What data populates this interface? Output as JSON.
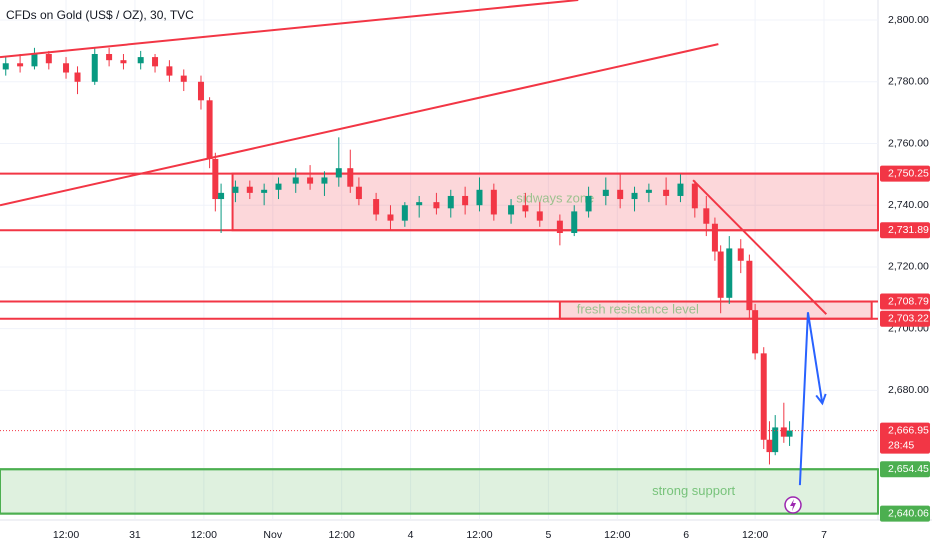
{
  "chart_data": {
    "type": "candlestick",
    "title": "CFDs on Gold (US$ / OZ), 30, TVC",
    "up_color": "#089981",
    "down_color": "#f23645",
    "x": [
      1.5,
      4,
      6.5,
      9,
      12,
      14,
      17,
      19.5,
      22,
      25,
      27.5,
      30,
      32.5,
      35.5,
      37,
      38,
      39,
      41.5,
      44,
      46.5,
      49,
      52,
      54.5,
      57,
      59.5,
      61.5,
      63,
      66,
      68.5,
      71,
      73.5,
      76.5,
      79,
      81.5,
      84,
      86.5,
      89.5,
      92,
      94.5,
      98,
      100.5,
      103,
      106,
      108.5,
      111,
      113.5,
      116.5,
      119,
      121.5,
      123.5,
      125,
      126,
      127.5,
      129.5,
      131,
      132,
      133.5,
      134.5,
      135.5,
      137,
      138
    ],
    "open": [
      2784,
      2786,
      2785,
      2789,
      2786,
      2783,
      2780,
      2789,
      2787,
      2786,
      2788,
      2785,
      2782,
      2780,
      2774,
      2755,
      2742,
      2744,
      2746,
      2744,
      2745,
      2747,
      2749,
      2747,
      2749,
      2752,
      2746,
      2742,
      2737,
      2735,
      2740,
      2741,
      2739,
      2743,
      2740,
      2745,
      2737,
      2740,
      2738,
      2735,
      2731,
      2738,
      2743,
      2745,
      2742,
      2744,
      2745,
      2743,
      2747,
      2739,
      2734,
      2725,
      2710,
      2726,
      2722,
      2706,
      2692,
      2664,
      2660,
      2668,
      2665
    ],
    "high": [
      2788,
      2789,
      2791,
      2790,
      2788,
      2785,
      2791,
      2791,
      2789,
      2790,
      2789,
      2787,
      2784,
      2782,
      2775,
      2757,
      2747,
      2748,
      2748,
      2747,
      2749,
      2752,
      2753,
      2751,
      2762,
      2758,
      2749,
      2744,
      2740,
      2741,
      2743,
      2744,
      2745,
      2746,
      2749,
      2747,
      2742,
      2744,
      2741,
      2737,
      2740,
      2746,
      2749,
      2750,
      2746,
      2747,
      2749,
      2750,
      2748,
      2743,
      2736,
      2727,
      2730,
      2729,
      2724,
      2708,
      2694,
      2670,
      2672,
      2676,
      2670
    ],
    "low": [
      2782,
      2783,
      2784,
      2784,
      2781,
      2776,
      2779,
      2785,
      2784,
      2784,
      2783,
      2780,
      2777,
      2771,
      2752,
      2738,
      2731,
      2741,
      2742,
      2740,
      2742,
      2744,
      2745,
      2743,
      2746,
      2744,
      2740,
      2735,
      2732,
      2733,
      2736,
      2737,
      2736,
      2737,
      2738,
      2735,
      2734,
      2736,
      2733,
      2727,
      2730,
      2736,
      2740,
      2739,
      2738,
      2741,
      2740,
      2741,
      2736,
      2730,
      2722,
      2705,
      2708,
      2718,
      2703,
      2690,
      2661,
      2656,
      2659,
      2663,
      2662
    ],
    "close": [
      2786,
      2785,
      2789,
      2786,
      2783,
      2780,
      2789,
      2787,
      2786,
      2788,
      2785,
      2782,
      2780,
      2774,
      2755,
      2742,
      2744,
      2746,
      2744,
      2745,
      2747,
      2749,
      2747,
      2749,
      2752,
      2746,
      2742,
      2737,
      2735,
      2740,
      2741,
      2739,
      2743,
      2740,
      2745,
      2737,
      2740,
      2738,
      2735,
      2731,
      2738,
      2743,
      2745,
      2742,
      2744,
      2745,
      2743,
      2747,
      2739,
      2734,
      2725,
      2710,
      2726,
      2722,
      2706,
      2692,
      2664,
      2660,
      2668,
      2665,
      2667
    ],
    "xlim": [
      0.5,
      153.4
    ],
    "ylim": [
      2638,
      2806.5
    ],
    "xticks": [
      {
        "value": 12,
        "label": "12:00"
      },
      {
        "value": 24,
        "label": "31"
      },
      {
        "value": 36,
        "label": "12:00"
      },
      {
        "value": 48,
        "label": "Nov"
      },
      {
        "value": 60,
        "label": "12:00"
      },
      {
        "value": 72,
        "label": "4"
      },
      {
        "value": 84,
        "label": "12:00"
      },
      {
        "value": 96,
        "label": "5"
      },
      {
        "value": 108,
        "label": "12:00"
      },
      {
        "value": 120,
        "label": "6"
      },
      {
        "value": 132,
        "label": "12:00"
      },
      {
        "value": 144,
        "label": "7"
      }
    ],
    "yticks": [
      {
        "value": 2800,
        "label": "2,800.00"
      },
      {
        "value": 2780,
        "label": "2,780.00"
      },
      {
        "value": 2760,
        "label": "2,760.00"
      },
      {
        "value": 2740,
        "label": "2,740.00"
      },
      {
        "value": 2720,
        "label": "2,720.00"
      },
      {
        "value": 2700,
        "label": "2,700.00"
      },
      {
        "value": 2680,
        "label": "2,680.00"
      }
    ],
    "zones": [
      {
        "name": "sidways zone",
        "top": 2750.25,
        "bottom": 2731.89,
        "x_from": 41,
        "x_to": 153.4,
        "fill": "rgba(242,54,69,0.2)",
        "edge": "#f23645",
        "text_color": "rgba(76,175,80,0.55)"
      },
      {
        "name": "fresh resistance level",
        "top": 2708.79,
        "bottom": 2703.22,
        "x_from": 98,
        "x_to": 152.3,
        "fill": "rgba(242,54,69,0.2)",
        "edge": "#f23645",
        "text_color": "rgba(76,175,80,0.55)"
      },
      {
        "name": "strong support",
        "top": 2654.45,
        "bottom": 2640.06,
        "x_from": 0.5,
        "x_to": 153.4,
        "fill": "rgba(76,175,80,0.18)",
        "edge": "#4caf50",
        "text_color": "rgba(76,175,80,0.7)"
      }
    ],
    "price_labels": [
      {
        "value": 2750.25,
        "label": "2,750.25",
        "color": "#f23645"
      },
      {
        "value": 2731.89,
        "label": "2,731.89",
        "color": "#f23645"
      },
      {
        "value": 2708.79,
        "label": "2,708.79",
        "color": "#f23645"
      },
      {
        "value": 2703.22,
        "label": "2,703.22",
        "color": "#f23645"
      },
      {
        "value": 2666.95,
        "label": "2,666.95",
        "color": "#f23645",
        "countdown": "28:45"
      },
      {
        "value": 2654.45,
        "label": "2,654.45",
        "color": "#4caf50"
      },
      {
        "value": 2640.06,
        "label": "2,640.06",
        "color": "#4caf50"
      }
    ],
    "trendlines": [
      {
        "color": "#f23645",
        "points": [
          [
            0.5,
            2788
          ],
          [
            101.2,
            2806.5
          ]
        ]
      },
      {
        "color": "#f23645",
        "points": [
          [
            0.5,
            2740
          ],
          [
            125.6,
            2792.2
          ]
        ]
      },
      {
        "color": "#f23645",
        "points": [
          [
            121.2,
            2748.1
          ],
          [
            144.4,
            2704.7
          ]
        ]
      },
      {
        "color": "#2962ff",
        "arrow": true,
        "points": [
          [
            139.8,
            2649.3
          ],
          [
            141.2,
            2705.3
          ],
          [
            143.7,
            2675.8
          ]
        ]
      }
    ]
  }
}
